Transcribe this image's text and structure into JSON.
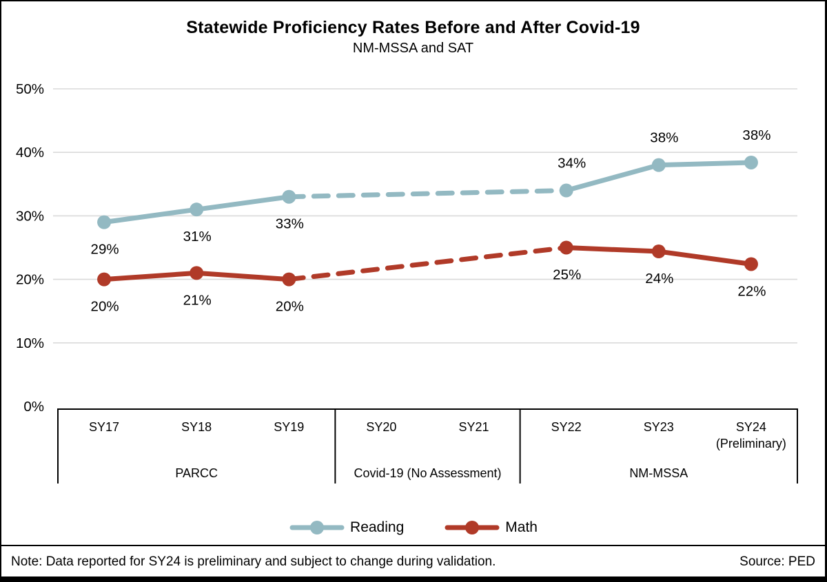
{
  "header": {
    "title": "Statewide Proficiency Rates Before and After Covid-19",
    "subtitle": "NM-MSSA and SAT"
  },
  "chart_data": {
    "type": "line",
    "title": "Statewide Proficiency Rates Before and After Covid-19",
    "subtitle": "NM-MSSA and SAT",
    "categories": [
      "SY17",
      "SY18",
      "SY19",
      "SY20",
      "SY21",
      "SY22",
      "SY23",
      "SY24"
    ],
    "category_sublabels": {
      "7": "(Preliminary)"
    },
    "groups": [
      {
        "label": "PARCC",
        "from_col": 0,
        "to_col": 2
      },
      {
        "label": "Covid-19 (No Assessment)",
        "from_col": 3,
        "to_col": 4
      },
      {
        "label": "NM-MSSA",
        "from_col": 5,
        "to_col": 7
      }
    ],
    "series": [
      {
        "name": "Reading",
        "color": "#93b9c2",
        "values": [
          29,
          31,
          33,
          null,
          null,
          34,
          38,
          38
        ],
        "plot_values": [
          29,
          31,
          33,
          null,
          null,
          34,
          38,
          38.4
        ],
        "labels": [
          "29%",
          "31%",
          "33%",
          null,
          null,
          "34%",
          "38%",
          "38%"
        ],
        "label_side": [
          "below",
          "below",
          "below",
          null,
          null,
          "above",
          "above",
          "above"
        ]
      },
      {
        "name": "Math",
        "color": "#b03a28",
        "values": [
          20,
          21,
          20,
          null,
          null,
          25,
          24,
          22
        ],
        "plot_values": [
          20,
          21,
          20,
          null,
          null,
          25,
          24.4,
          22.4
        ],
        "labels": [
          "20%",
          "21%",
          "20%",
          null,
          null,
          "25%",
          "24%",
          "22%"
        ],
        "label_side": [
          "below",
          "below",
          "below",
          null,
          null,
          "below",
          "below",
          "below"
        ]
      }
    ],
    "gap_segment": {
      "from_col": 2,
      "to_col": 5,
      "style": "dashed"
    },
    "ylim": [
      0,
      50
    ],
    "yticks": [
      {
        "v": 0,
        "label": "0%"
      },
      {
        "v": 10,
        "label": "10%"
      },
      {
        "v": 20,
        "label": "20%"
      },
      {
        "v": 30,
        "label": "30%"
      },
      {
        "v": 40,
        "label": "40%"
      },
      {
        "v": 50,
        "label": "50%"
      }
    ],
    "grid_color": "#d9d9d9",
    "axis_color": "#000000",
    "legend_position": "bottom"
  },
  "legend": {
    "items": [
      {
        "label": "Reading"
      },
      {
        "label": "Math"
      }
    ]
  },
  "footer": {
    "note": "Note: Data reported for SY24 is preliminary and subject to change during validation.",
    "source": "Source: PED"
  }
}
